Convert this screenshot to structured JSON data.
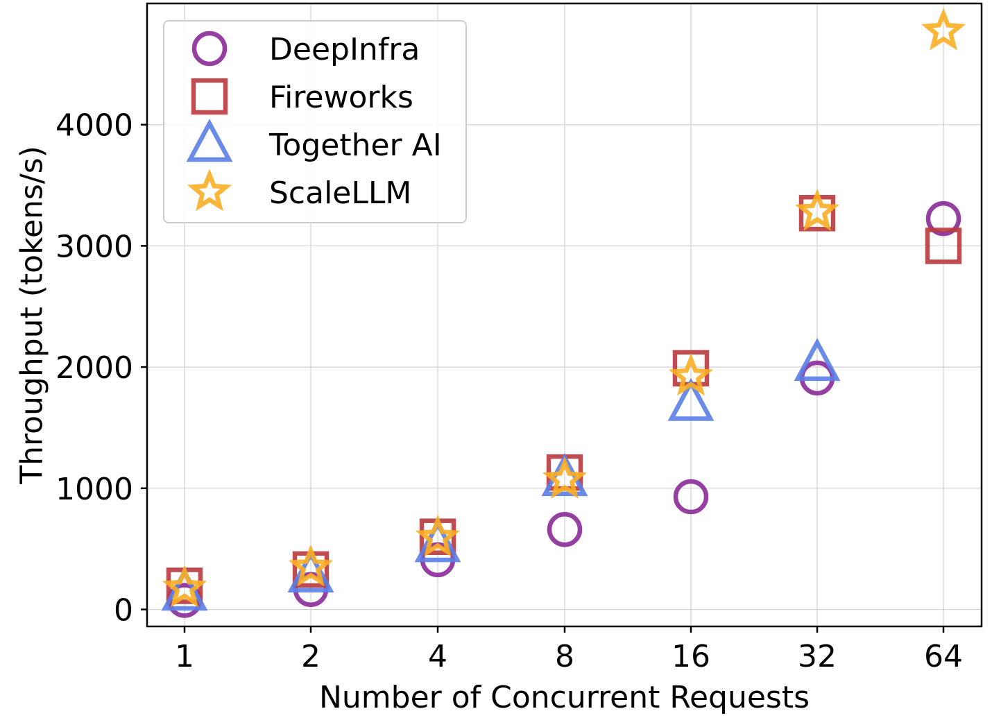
{
  "chart_data": {
    "type": "scatter",
    "title": "",
    "xlabel": "Number of Concurrent Requests",
    "ylabel": "Throughput (tokens/s)",
    "x_scale": "log2",
    "categories": [
      "1",
      "2",
      "4",
      "8",
      "16",
      "32",
      "64"
    ],
    "x": [
      1,
      2,
      4,
      8,
      16,
      32,
      64
    ],
    "yticks": [
      "0",
      "1000",
      "2000",
      "3000",
      "4000"
    ],
    "ylim": [
      -140,
      5000
    ],
    "grid": true,
    "legend_position": "top-left",
    "series": [
      {
        "name": "DeepInfra",
        "marker": "circle",
        "color": "#8B2A98",
        "values": [
          75,
          165,
          410,
          660,
          930,
          1910,
          3225
        ]
      },
      {
        "name": "Fireworks",
        "marker": "square",
        "color": "#B8393D",
        "values": [
          195,
          330,
          600,
          1130,
          1990,
          3270,
          3000
        ]
      },
      {
        "name": "Together AI",
        "marker": "triangle",
        "color": "#5B7EE5",
        "values": [
          135,
          285,
          535,
          1080,
          1700,
          2030,
          null
        ]
      },
      {
        "name": "ScaleLLM",
        "marker": "star",
        "color": "#F9AE22",
        "values": [
          175,
          345,
          590,
          1070,
          1920,
          3280,
          4770
        ]
      }
    ]
  }
}
